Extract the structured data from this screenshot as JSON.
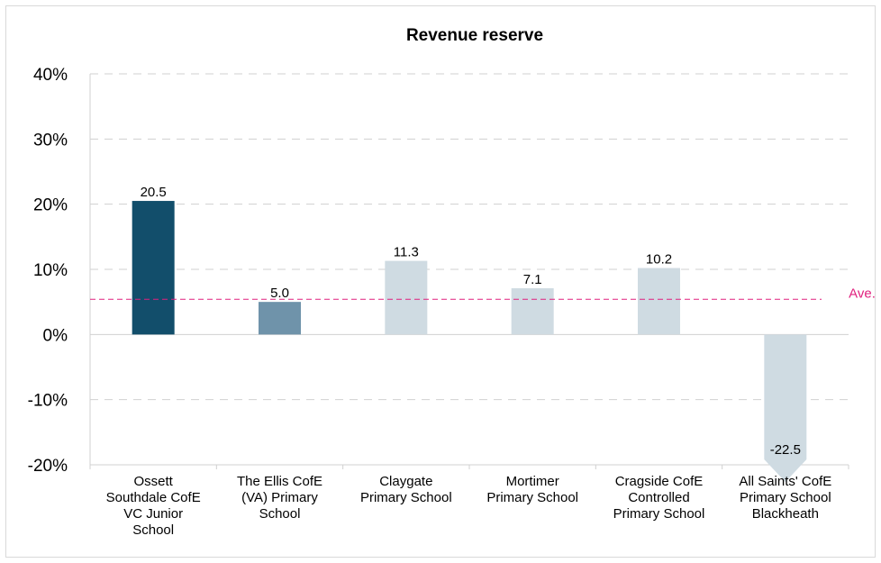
{
  "chart_data": {
    "type": "bar",
    "title": "Revenue reserve",
    "xlabel": "",
    "ylabel": "",
    "ylim": [
      -20,
      40
    ],
    "yticks": [
      40,
      30,
      20,
      10,
      0,
      -10,
      -20
    ],
    "ytick_labels": [
      "40%",
      "30%",
      "20%",
      "10%",
      "0%",
      "-10%",
      "-20%"
    ],
    "grid": true,
    "categories": [
      [
        "Ossett",
        "Southdale CofE",
        "VC Junior",
        "School"
      ],
      [
        "The Ellis CofE",
        "(VA) Primary",
        "School"
      ],
      [
        "Claygate",
        "Primary School"
      ],
      [
        "Mortimer",
        "Primary School"
      ],
      [
        "Cragside CofE",
        "Controlled",
        "Primary School"
      ],
      [
        "All Saints' CofE",
        "Primary School",
        "Blackheath"
      ]
    ],
    "values": [
      20.5,
      5.0,
      11.3,
      7.1,
      10.2,
      -22.5
    ],
    "data_labels": [
      "20.5",
      "5.0",
      "11.3",
      "7.1",
      "10.2",
      "-22.5"
    ],
    "bar_colors": [
      "#124e6b",
      "#6f93aa",
      "#cfdbe2",
      "#cfdbe2",
      "#cfdbe2",
      "#cfdbe2"
    ],
    "average": {
      "label": "Ave.",
      "value": 5.4,
      "color": "#e0207e"
    },
    "grid_color": "#d0d0d0"
  }
}
